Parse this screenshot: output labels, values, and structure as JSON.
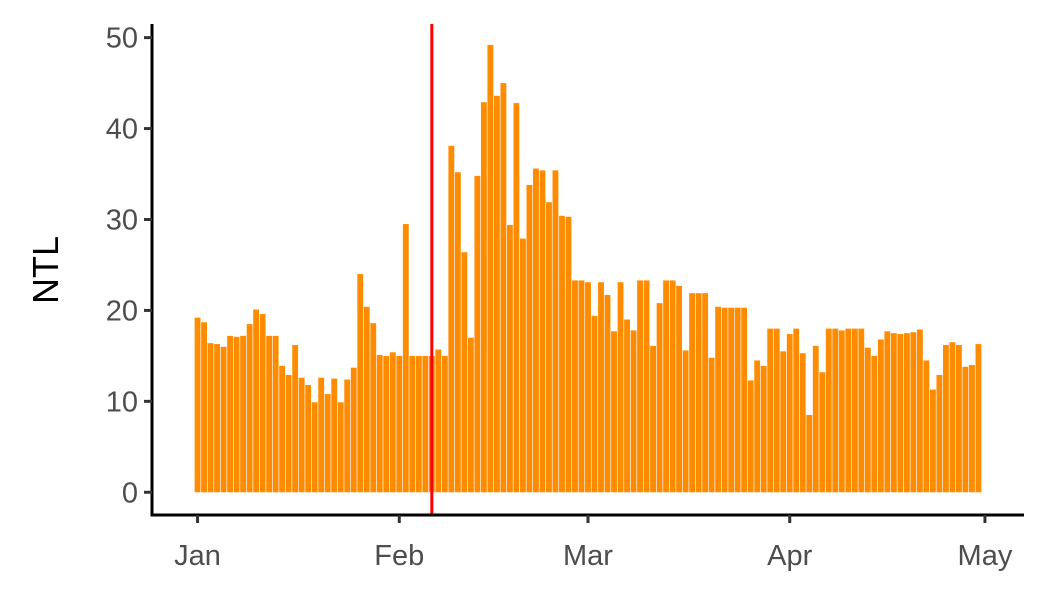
{
  "chart_data": {
    "type": "bar",
    "title": "",
    "xlabel": "",
    "ylabel": "NTL",
    "x_start": "2020-01-01",
    "x_ticks": [
      {
        "date": "2020-01-01",
        "label": "Jan"
      },
      {
        "date": "2020-02-01",
        "label": "Feb"
      },
      {
        "date": "2020-03-01",
        "label": "Mar"
      },
      {
        "date": "2020-04-01",
        "label": "Apr"
      },
      {
        "date": "2020-05-01",
        "label": "May"
      }
    ],
    "y_ticks": [
      0,
      10,
      20,
      30,
      40,
      50
    ],
    "ylim": [
      -2.5,
      51.5
    ],
    "xlim": [
      "2019-12-25",
      "2020-05-07"
    ],
    "grid": false,
    "legend": "none",
    "bar_color": "#FF8C00",
    "vline": {
      "date": "2020-02-06",
      "color": "#FF0000"
    },
    "values": [
      19.2,
      18.7,
      16.4,
      16.3,
      16.0,
      17.2,
      17.1,
      17.2,
      18.5,
      20.1,
      19.6,
      17.2,
      17.2,
      13.9,
      12.9,
      16.2,
      12.6,
      11.8,
      9.9,
      12.6,
      10.8,
      12.5,
      9.9,
      12.4,
      13.7,
      24.0,
      20.4,
      18.6,
      15.1,
      15.0,
      15.4,
      15.0,
      29.5,
      15.0,
      15.0,
      15.0,
      15.0,
      15.7,
      15.0,
      38.1,
      35.2,
      26.4,
      17.0,
      34.8,
      42.9,
      49.2,
      43.6,
      45.0,
      29.4,
      42.8,
      27.9,
      33.8,
      35.6,
      35.4,
      31.9,
      35.4,
      30.4,
      30.3,
      23.3,
      23.3,
      23.1,
      19.4,
      23.1,
      21.7,
      17.7,
      23.1,
      19.0,
      17.8,
      23.3,
      23.3,
      16.1,
      20.8,
      23.3,
      23.3,
      22.7,
      15.6,
      21.9,
      21.9,
      21.9,
      14.8,
      20.4,
      20.3,
      20.3,
      20.3,
      20.3,
      12.3,
      14.5,
      13.9,
      18.0,
      18.0,
      15.5,
      17.4,
      18.0,
      15.3,
      8.5,
      16.1,
      13.2,
      18.0,
      18.0,
      17.8,
      18.0,
      18.0,
      18.0,
      15.9,
      15.0,
      16.8,
      17.7,
      17.5,
      17.4,
      17.5,
      17.6,
      17.9,
      14.5,
      11.3,
      12.9,
      16.2,
      16.5,
      16.2,
      13.8,
      14.0,
      16.3
    ]
  }
}
